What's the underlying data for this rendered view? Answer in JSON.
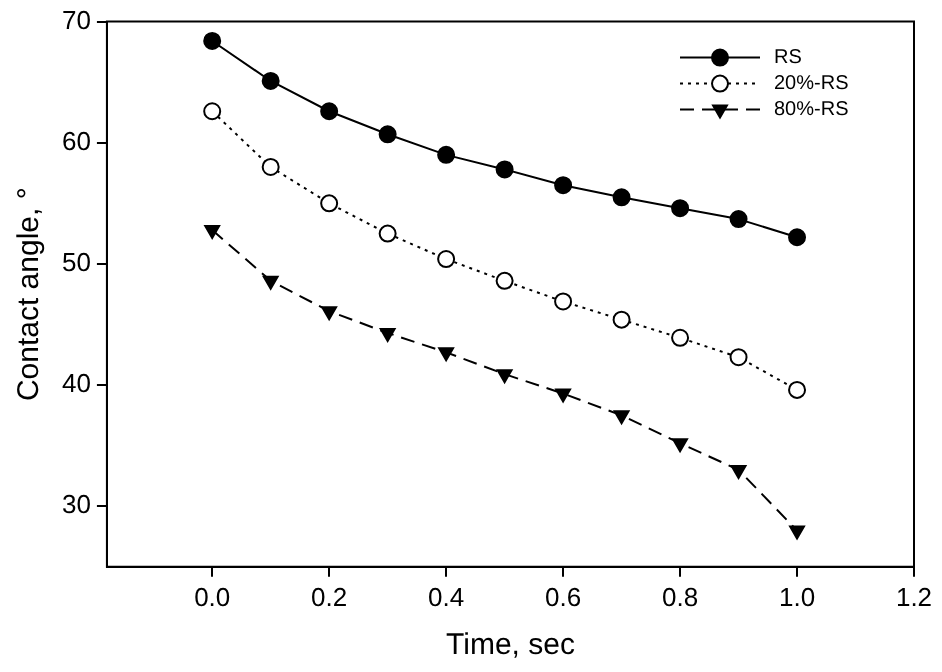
{
  "chart_data": {
    "type": "line",
    "xlabel": "Time, sec",
    "ylabel": "Contact angle, °",
    "x": [
      0,
      0.1,
      0.2,
      0.3,
      0.4,
      0.5,
      0.6,
      0.7,
      0.8,
      0.9,
      1.0
    ],
    "xlim": [
      -0.18,
      1.2
    ],
    "xticks": [
      {
        "value": 0,
        "label": "0.0"
      },
      0.2,
      0.4,
      0.6,
      0.8,
      {
        "value": 1,
        "label": "1.0"
      },
      1.2
    ],
    "ylim": [
      25,
      70
    ],
    "yticks": [
      30,
      40,
      50,
      60,
      70
    ],
    "grid": false,
    "legend": "top right",
    "series": [
      {
        "name": "RS",
        "color": "#000000",
        "marker": "circle",
        "line_style": "solid",
        "values": [
          68.4,
          65.1,
          62.6,
          60.7,
          59.0,
          57.8,
          56.5,
          55.5,
          54.6,
          53.7,
          52.2
        ]
      },
      {
        "name": "20%-RS",
        "color": "#000000",
        "marker": "open circle",
        "line_style": "dotted",
        "values": [
          62.6,
          58.0,
          55.0,
          52.5,
          50.4,
          48.6,
          46.9,
          45.4,
          43.9,
          42.3,
          39.6
        ]
      },
      {
        "name": "80%-RS",
        "color": "#000000",
        "marker": "triangle down",
        "line_style": "dashed",
        "values": [
          52.8,
          48.6,
          46.1,
          44.3,
          42.7,
          40.9,
          39.3,
          37.5,
          35.2,
          33.0,
          28.0
        ]
      }
    ]
  }
}
